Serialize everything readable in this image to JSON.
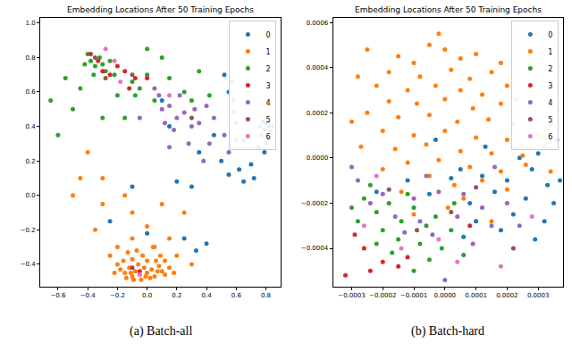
{
  "chart_data": [
    {
      "type": "scatter",
      "title": "Embedding Locations After 50 Training Epochs",
      "caption": "(a) Batch-all",
      "marker": "circle",
      "grid": false,
      "legend": "upper right",
      "xlim": [
        -0.72,
        0.9
      ],
      "ylim": [
        -0.53,
        1.03
      ],
      "xticks": [
        {
          "value": -0.6,
          "label": "−0.6"
        },
        {
          "value": -0.4,
          "label": "−0.4"
        },
        {
          "value": -0.2,
          "label": "−0.2"
        },
        {
          "value": 0,
          "label": "0.0"
        },
        0.2,
        0.4,
        0.6,
        0.8
      ],
      "yticks": [
        {
          "value": -0.4,
          "label": "−0.4"
        },
        {
          "value": -0.2,
          "label": "−0.2"
        },
        {
          "value": 0,
          "label": "0.0"
        },
        0.2,
        0.4,
        0.6,
        0.8,
        {
          "value": 1,
          "label": "1.0"
        }
      ],
      "series": [
        {
          "name": "0",
          "color": "#1f77b4",
          "x": [
            0.8,
            0.82,
            0.79,
            0.81,
            0.77,
            0.83,
            0.8,
            0.78,
            0.84,
            0.76,
            0.82,
            0.79,
            0.75,
            0.7,
            0.72,
            0.65,
            0.62,
            0.6,
            0.58,
            0.55,
            0.52,
            0.57,
            0.45,
            0.5,
            0.55,
            0.35,
            0.3,
            0.2,
            0.15,
            0.1,
            0.25,
            0.33,
            -0.25,
            0,
            0.4,
            -0.1,
            0.58
          ],
          "values": [
            0.42,
            0.4,
            0.38,
            0.42,
            0.35,
            0.37,
            0.3,
            0.43,
            0.4,
            0.4,
            0.33,
            0.25,
            0.28,
            0.18,
            0.1,
            0.08,
            0.15,
            0.42,
            0.48,
            0.6,
            0.7,
            0.66,
            0.35,
            0.2,
            0.12,
            0.25,
            0.05,
            0.08,
            0.4,
            0.55,
            -0.25,
            -0.32,
            -0.15,
            -0.22,
            -0.28,
            0.05,
            0.55
          ]
        },
        {
          "name": "1",
          "color": "#ff7f0e",
          "x": [
            -0.15,
            -0.1,
            -0.05,
            0,
            0.05,
            0.1,
            -0.12,
            -0.08,
            -0.02,
            0.03,
            0.08,
            -0.18,
            -0.14,
            -0.04,
            0.02,
            0.12,
            -0.06,
            0,
            -0.1,
            0.06,
            -0.2,
            0.15,
            -0.16,
            -0.03,
            0.09,
            -0.22,
            0.18,
            -0.07,
            0.04,
            -0.13,
            0.12,
            -0.01,
            -0.09,
            0.07,
            -0.11,
            -0.4,
            -0.45,
            -0.3,
            -0.35,
            -0.5,
            -0.1,
            0.1,
            0.15,
            0.2,
            0.3,
            -0.25,
            -0.2,
            0.05,
            -0.1,
            0.25,
            -0.15,
            0,
            -0.3
          ],
          "values": [
            -0.45,
            -0.47,
            -0.46,
            -0.45,
            -0.47,
            -0.44,
            -0.42,
            -0.44,
            -0.42,
            -0.43,
            -0.41,
            -0.43,
            -0.48,
            -0.49,
            -0.48,
            -0.46,
            -0.4,
            -0.38,
            -0.37,
            -0.38,
            -0.4,
            -0.42,
            -0.38,
            -0.35,
            -0.35,
            -0.45,
            -0.45,
            -0.32,
            -0.3,
            -0.33,
            -0.38,
            -0.47,
            -0.49,
            -0.44,
            -0.45,
            0.25,
            0.1,
            -0.05,
            -0.2,
            0,
            -0.1,
            -0.05,
            -0.25,
            -0.35,
            -0.4,
            -0.35,
            -0.3,
            -0.3,
            -0.25,
            -0.1,
            0,
            -0.18,
            0.1
          ]
        },
        {
          "name": "2",
          "color": "#2ca02c",
          "x": [
            -0.4,
            -0.38,
            -0.35,
            -0.32,
            -0.3,
            -0.28,
            -0.25,
            -0.22,
            -0.36,
            -0.42,
            -0.1,
            -0.05,
            0,
            -0.08,
            -0.65,
            -0.6,
            -0.5,
            0,
            0.1,
            -0.15,
            -0.3,
            0.25,
            0.3,
            0.42,
            0.05,
            0.15,
            -0.2,
            0.35,
            -0.45,
            -0.55
          ],
          "values": [
            0.82,
            0.78,
            0.75,
            0.8,
            0.76,
            0.72,
            0.78,
            0.7,
            0.7,
            0.76,
            0.66,
            0.62,
            0.7,
            0.58,
            0.55,
            0.35,
            0.5,
            0.85,
            0.8,
            0.45,
            0.45,
            0.6,
            0.55,
            0.58,
            0.55,
            0.68,
            0.58,
            0.72,
            0.62,
            0.68
          ]
        },
        {
          "name": "3",
          "color": "#d62728",
          "x": [
            -0.33,
            -0.3,
            -0.2,
            -0.15,
            -0.08,
            -0.12,
            -0.38,
            -0.25,
            0,
            -0.05,
            -0.1
          ],
          "values": [
            0.78,
            0.72,
            0.75,
            0.72,
            0.68,
            0.62,
            0.82,
            0.7,
            0.68,
            -0.44,
            -0.42
          ]
        },
        {
          "name": "4",
          "color": "#9467bd",
          "x": [
            0.1,
            0.15,
            0.2,
            0.25,
            0.3,
            0.35,
            0.28,
            0.18,
            0.12,
            0.4,
            0.05,
            0.22,
            0.45,
            0.52,
            0.38,
            0.55,
            0.6,
            0.15,
            -0.05,
            0.32,
            0.08,
            0.42
          ],
          "values": [
            0.5,
            0.52,
            0.45,
            0.48,
            0.4,
            0.42,
            0.3,
            0.38,
            0.42,
            0.52,
            0.62,
            0.58,
            0.45,
            0.35,
            0.2,
            0.25,
            0.32,
            0.28,
            0.45,
            0.5,
            0.58,
            0.3
          ]
        },
        {
          "name": "5",
          "color": "#8c564b",
          "x": [
            -0.35,
            -0.28,
            -0.1,
            0.3,
            0.65
          ],
          "values": [
            0.8,
            0.68,
            0.7,
            0.45,
            0.32
          ]
        },
        {
          "name": "6",
          "color": "#e377c2",
          "x": [
            -0.28,
            -0.22,
            -0.18,
            0.15,
            -0.05
          ],
          "values": [
            0.85,
            0.78,
            0.66,
            0.58,
            -0.46
          ]
        }
      ]
    },
    {
      "type": "scatter",
      "title": "Embedding Locations After 50 Training Epochs",
      "caption": "(b) Batch-hard",
      "marker": "circle",
      "grid": false,
      "legend": "upper right",
      "xlim": [
        -0.00036,
        0.00038
      ],
      "ylim": [
        -0.00057,
        0.00062
      ],
      "xticks": [
        {
          "value": -0.0003,
          "label": "−0.0003"
        },
        {
          "value": -0.0002,
          "label": "−0.0002"
        },
        {
          "value": -0.0001,
          "label": "−0.0001"
        },
        {
          "value": 0,
          "label": "0.0000"
        },
        {
          "value": 0.0001,
          "label": "0.0001"
        },
        {
          "value": 0.0002,
          "label": "0.0002"
        },
        {
          "value": 0.0003,
          "label": "0.0003"
        }
      ],
      "yticks": [
        {
          "value": -0.0004,
          "label": "−0.0004"
        },
        {
          "value": -0.0002,
          "label": "−0.0002"
        },
        {
          "value": 0,
          "label": "0.0000"
        },
        {
          "value": 0.0002,
          "label": "0.0002"
        },
        {
          "value": 0.0004,
          "label": "0.0004"
        },
        {
          "value": 0.0006,
          "label": "0.0006"
        }
      ],
      "series": [
        {
          "name": "0",
          "color": "#1f77b4",
          "x": [
            5e-05,
            0.00012,
            0.0002,
            0.00028,
            0.00033,
            0.00035,
            0.00026,
            0.00016,
            8e-05,
            0.0003,
            0.00036,
            0.00024,
            0.0001,
            0.00022,
            0.00032,
            2e-05,
            -5e-05,
            -0.00012,
            0.00018,
            0.00029,
            0.00037,
            -3e-05,
            0.00013,
            -0.00022,
            0.00034,
            6e-05
          ],
          "values": [
            -5e-05,
            -8e-05,
            -0.0001,
            -5e-05,
            -0.00012,
            -0.0002,
            -0.00018,
            -0.00015,
            -0.0002,
            2e-05,
            8e-05,
            0,
            -0.00028,
            -0.00025,
            -0.00028,
            -9e-05,
            -0.00016,
            -0.0001,
            -0.00032,
            -0.00036,
            -0.0001,
            8e-05,
            5e-05,
            -0.00015,
            0.00015,
            -0.00035
          ]
        },
        {
          "name": "1",
          "color": "#ff7f0e",
          "x": [
            -0.00015,
            -0.0001,
            -5e-05,
            0,
            5e-05,
            0.0001,
            -0.00025,
            -0.00018,
            -8e-05,
            2e-05,
            8e-05,
            0.00015,
            -0.00022,
            -0.00012,
            -3e-05,
            5e-05,
            0.00012,
            0.0002,
            -0.00018,
            -9e-05,
            0,
            9e-05,
            0.00018,
            0.00023,
            -0.00025,
            -0.00015,
            -5e-05,
            4e-05,
            0.00014,
            0.00022,
            -0.0002,
            -0.0001,
            0,
            0.0001,
            0.0002,
            0.0003,
            -0.00027,
            -0.00016,
            -6e-05,
            5e-05,
            0.00015,
            0.00025,
            -0.00012,
            -2e-05,
            8e-05,
            0.00018,
            -0.0002,
            -5e-05,
            3e-05,
            0.00012,
            0.00026,
            -0.0003,
            0.00032,
            -0.00014,
            6e-05,
            0.0002,
            -2e-05,
            0.00018,
            -0.00028,
            1e-05,
            -0.0001,
            0.00015,
            0.00034
          ],
          "values": [
            0.00045,
            0.00042,
            0.0005,
            0.00048,
            0.00044,
            0.00046,
            0.00048,
            0.00038,
            0.00036,
            0.00039,
            0.00035,
            0.00038,
            0.00032,
            0.0003,
            0.00032,
            0.0003,
            0.00028,
            0.00032,
            0.00025,
            0.00024,
            0.00026,
            0.00022,
            0.00024,
            0.00026,
            0.0002,
            0.00018,
            0.00019,
            0.00016,
            0.00017,
            0.00015,
            0.00012,
            0.0001,
            0.00012,
            9e-05,
            8e-05,
            0.0001,
            5e-05,
            4e-05,
            6e-05,
            3e-05,
            2e-05,
            1e-05,
            -2e-05,
            -1e-05,
            -4e-05,
            -6e-05,
            -5e-05,
            -8e-05,
            -0.00012,
            -0.0001,
            -3e-05,
            0.00016,
            5e-05,
            -0.00015,
            -0.00018,
            -0.00014,
            0.00055,
            0.00042,
            0.00036,
            -0.00022,
            -0.00025,
            -0.00028,
            -6e-05
          ]
        },
        {
          "name": "2",
          "color": "#2ca02c",
          "x": [
            -0.00026,
            -0.00022,
            -0.00018,
            -0.00014,
            -0.0001,
            -6e-05,
            -0.0002,
            -0.00028,
            -0.00015,
            -8e-05,
            -3e-05,
            2e-05,
            -0.00012,
            -0.00024,
            -0.0003,
            -0.00017,
            -5e-05,
            3e-05,
            -1e-05,
            -0.00022,
            6e-05,
            -0.0001
          ],
          "values": [
            -0.00018,
            -0.00024,
            -0.0002,
            -0.00028,
            -0.00022,
            -0.0003,
            -0.00032,
            -0.00028,
            -0.00036,
            -0.00038,
            -0.00026,
            -0.00032,
            -0.00016,
            -0.00012,
            -0.00022,
            -0.00042,
            -0.00045,
            -0.0002,
            -0.0004,
            -0.00038,
            -0.00043,
            -0.0005
          ]
        },
        {
          "name": "3",
          "color": "#d62728",
          "x": [
            -0.00032,
            -0.00026,
            -0.0002,
            -0.00015,
            -0.00029,
            -0.00012,
            -0.00024,
            8e-05
          ],
          "values": [
            -0.00052,
            -0.0004,
            -0.00046,
            -0.00048,
            -0.00034,
            -0.00044,
            -0.0005,
            -0.0003
          ]
        },
        {
          "name": "4",
          "color": "#9467bd",
          "x": [
            -0.00028,
            -0.0002,
            -0.0001,
            -2e-05,
            6e-05,
            0.00012,
            0.0002,
            -0.00016,
            -8e-05,
            4e-05,
            0.00015,
            -0.00024,
            -4e-05,
            9e-05,
            -0.00013,
            0.00024,
            -0.0003,
            0,
            -6e-05,
            0.00016
          ],
          "values": [
            -0.0001,
            -0.00016,
            -0.00018,
            -0.00015,
            -0.00016,
            -0.00022,
            -0.0002,
            -0.00026,
            -0.00028,
            -0.00026,
            -0.0003,
            -0.0002,
            -0.00034,
            -0.00038,
            -0.00033,
            -0.0003,
            -4e-05,
            -0.00054,
            -8e-05,
            -4e-05
          ]
        },
        {
          "name": "5",
          "color": "#8c564b",
          "x": [
            -0.00018,
            2e-05,
            0.0001,
            -9e-05,
            0.00022
          ],
          "values": [
            -0.00014,
            -0.00024,
            -0.00013,
            -0.00032,
            -0.0004
          ]
        },
        {
          "name": "6",
          "color": "#e377c2",
          "x": [
            -0.00026,
            -0.00014,
            4e-05,
            0.00018,
            -2e-05,
            0.00028,
            -0.00022
          ],
          "values": [
            -0.0003,
            -0.0004,
            -0.00046,
            -0.00048,
            -0.00036,
            -0.00026,
            -8e-05
          ]
        }
      ]
    }
  ]
}
